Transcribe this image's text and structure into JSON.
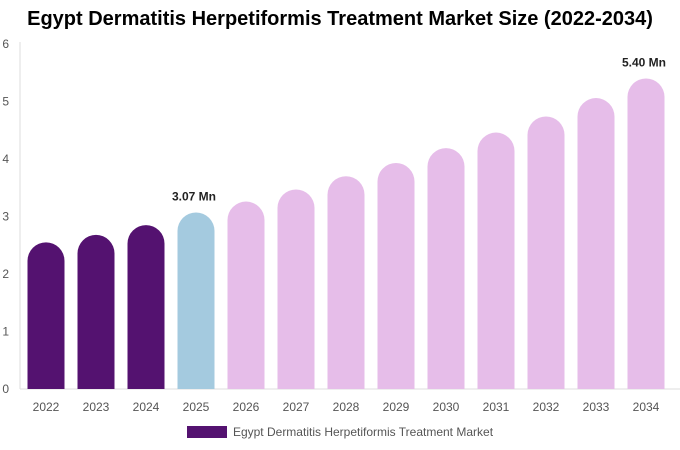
{
  "chart_data": {
    "type": "bar",
    "title": "Egypt Dermatitis Herpetiformis Treatment Market Size (2022-2034)",
    "categories": [
      "2022",
      "2023",
      "2024",
      "2025",
      "2026",
      "2027",
      "2028",
      "2029",
      "2030",
      "2031",
      "2032",
      "2033",
      "2034"
    ],
    "series": [
      {
        "name": "Egypt Dermatitis Herpetiformis Treatment Market",
        "values": [
          2.55,
          2.68,
          2.85,
          3.07,
          3.26,
          3.47,
          3.7,
          3.93,
          4.19,
          4.46,
          4.74,
          5.06,
          5.4
        ]
      }
    ],
    "data_labels": [
      {
        "category": "2025",
        "text": "3.07 Mn"
      },
      {
        "category": "2034",
        "text": "5.40 Mn"
      }
    ],
    "ylim": [
      0,
      6
    ],
    "yticks": [
      "0",
      "1",
      "2",
      "3",
      "4",
      "5",
      "6"
    ],
    "colors": {
      "historical": "#541270",
      "current": "#a4cadf",
      "forecast": "#e6bde9",
      "legend": "#541270"
    },
    "historical_categories": [
      "2022",
      "2023",
      "2024"
    ],
    "current_category": "2025",
    "legend_position": "bottom",
    "grid": false
  }
}
